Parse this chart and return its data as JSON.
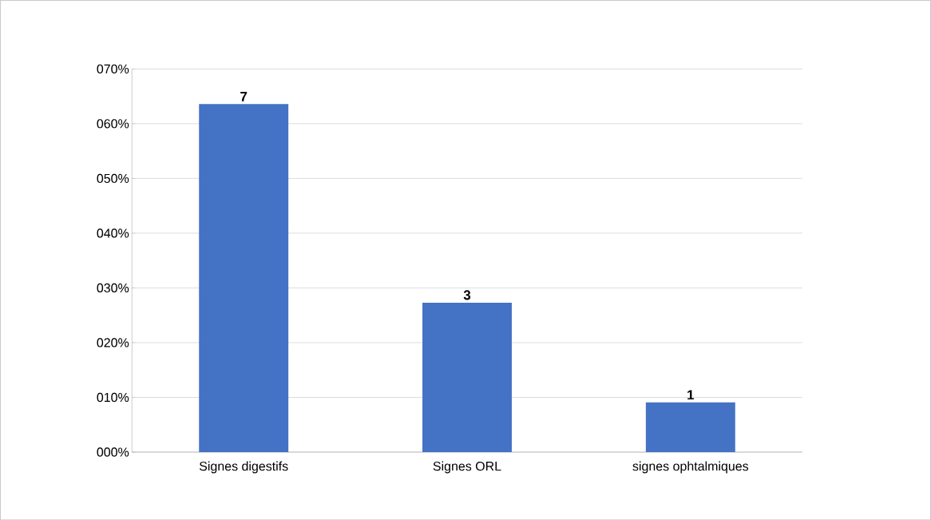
{
  "chart_data": {
    "type": "bar",
    "categories": [
      "Signes digestifs",
      "Signes ORL",
      "signes ophtalmiques"
    ],
    "values": [
      63.6,
      27.3,
      9.1
    ],
    "annotations": [
      {
        "text": "7",
        "x": "Signes digestifs",
        "y": 63.6
      },
      {
        "text": "3",
        "x": "Signes ORL",
        "y": 27.3
      },
      {
        "text": "1",
        "x": "signes ophtalmiques",
        "y": 9.1
      }
    ],
    "color": "#4472c4",
    "ylim": [
      0,
      70
    ],
    "yticks": [
      {
        "value": 0,
        "label": "000%"
      },
      {
        "value": 10,
        "label": "010%"
      },
      {
        "value": 20,
        "label": "020%"
      },
      {
        "value": 30,
        "label": "030%"
      },
      {
        "value": 40,
        "label": "040%"
      },
      {
        "value": 50,
        "label": "050%"
      },
      {
        "value": 60,
        "label": "060%"
      },
      {
        "value": 70,
        "label": "070%"
      }
    ],
    "grid": "y"
  }
}
